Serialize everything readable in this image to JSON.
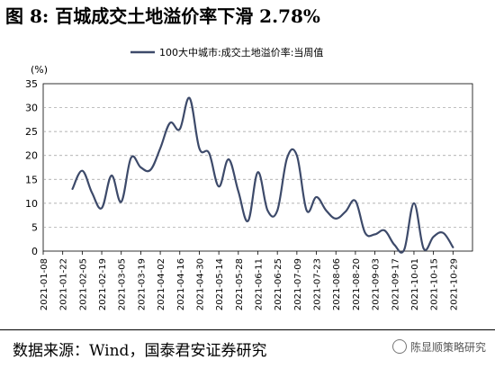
{
  "title": "图 8:  百城成交土地溢价率下滑 2.78%",
  "source": "数据来源：Wind，国泰君安证券研究",
  "watermark": "陈显顺策略研究",
  "chart_data": {
    "type": "line",
    "title": "",
    "unit_label": "(%)",
    "xlabel": "",
    "ylabel": "",
    "ylim": [
      0,
      35
    ],
    "yticks": [
      0,
      5,
      10,
      15,
      20,
      25,
      30,
      35
    ],
    "grid": "horizontal-dashed",
    "legend_position": "top",
    "line_color": "#3d4a6a",
    "x_tick_labels": [
      "2021-01-08",
      "2021-01-22",
      "2021-02-05",
      "2021-02-19",
      "2021-03-05",
      "2021-03-19",
      "2021-04-02",
      "2021-04-16",
      "2021-04-30",
      "2021-05-14",
      "2021-05-28",
      "2021-06-11",
      "2021-06-25",
      "2021-07-09",
      "2021-07-23",
      "2021-08-06",
      "2021-08-20",
      "2021-09-03",
      "2021-09-17",
      "2021-10-01",
      "2021-10-15",
      "2021-10-29"
    ],
    "series": [
      {
        "name": "100大中城市:成交土地溢价率:当周值",
        "x": [
          "2021-01-29",
          "2021-02-05",
          "2021-02-12",
          "2021-02-19",
          "2021-02-26",
          "2021-03-05",
          "2021-03-12",
          "2021-03-19",
          "2021-03-26",
          "2021-04-02",
          "2021-04-09",
          "2021-04-16",
          "2021-04-23",
          "2021-04-30",
          "2021-05-07",
          "2021-05-14",
          "2021-05-21",
          "2021-05-28",
          "2021-06-04",
          "2021-06-11",
          "2021-06-18",
          "2021-06-25",
          "2021-07-02",
          "2021-07-09",
          "2021-07-16",
          "2021-07-23",
          "2021-07-30",
          "2021-08-06",
          "2021-08-13",
          "2021-08-20",
          "2021-08-27",
          "2021-09-03",
          "2021-09-10",
          "2021-09-17",
          "2021-09-24",
          "2021-10-01",
          "2021-10-08",
          "2021-10-15",
          "2021-10-22",
          "2021-10-29"
        ],
        "values": [
          13,
          16.8,
          12.2,
          9,
          15.8,
          10.3,
          19.5,
          17.5,
          17,
          21.5,
          26.8,
          25.5,
          32,
          21.5,
          20.5,
          13.5,
          19.2,
          12.5,
          6.3,
          16.5,
          8.5,
          8.5,
          19.5,
          20,
          8.5,
          11.3,
          8.5,
          6.8,
          8.3,
          10.5,
          3.8,
          3.5,
          4.3,
          1.3,
          0.3,
          10,
          0.5,
          3,
          3.8,
          0.8
        ]
      }
    ]
  }
}
